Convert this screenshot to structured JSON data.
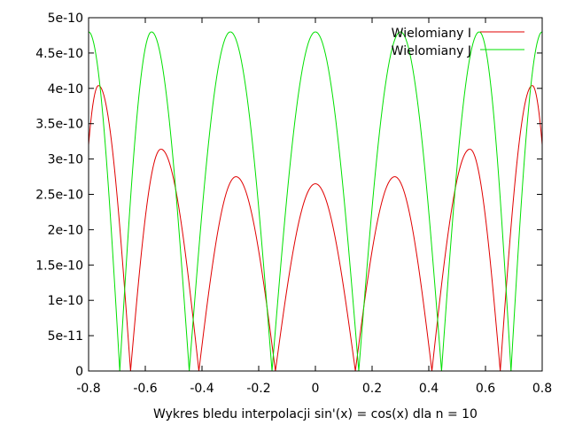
{
  "chart_data": {
    "type": "line",
    "title": "",
    "xlabel": "Wykres bledu interpolacji sin'(x) = cos(x) dla n = 10",
    "ylabel": "",
    "xlim": [
      -0.8,
      0.8
    ],
    "ylim": [
      0,
      5e-10
    ],
    "grid": false,
    "legend_position": "top-right",
    "x_ticks": [
      {
        "value": -0.8,
        "label": "-0.8"
      },
      {
        "value": -0.6,
        "label": "-0.6"
      },
      {
        "value": -0.4,
        "label": "-0.4"
      },
      {
        "value": -0.2,
        "label": "-0.2"
      },
      {
        "value": 0,
        "label": "0"
      },
      {
        "value": 0.2,
        "label": "0.2"
      },
      {
        "value": 0.4,
        "label": "0.4"
      },
      {
        "value": 0.6,
        "label": "0.6"
      },
      {
        "value": 0.8,
        "label": "0.8"
      }
    ],
    "y_ticks": [
      {
        "value": 0,
        "label": "0"
      },
      {
        "value": 5e-11,
        "label": "5e-11"
      },
      {
        "value": 1e-10,
        "label": "1e-10"
      },
      {
        "value": 1.5e-10,
        "label": "1.5e-10"
      },
      {
        "value": 2e-10,
        "label": "2e-10"
      },
      {
        "value": 2.5e-10,
        "label": "2.5e-10"
      },
      {
        "value": 3e-10,
        "label": "3e-10"
      },
      {
        "value": 3.5e-10,
        "label": "3.5e-10"
      },
      {
        "value": 4e-10,
        "label": "4e-10"
      },
      {
        "value": 4.5e-10,
        "label": "4.5e-10"
      },
      {
        "value": 5e-10,
        "label": "5e-10"
      }
    ],
    "series": [
      {
        "name": "Wielomiany I",
        "color": "#e00000",
        "roots": [
          -0.652,
          -0.411,
          -0.141,
          0.141,
          0.411,
          0.652
        ],
        "peaks": [
          {
            "x": -0.765,
            "y": 4.04e-10
          },
          {
            "x": -0.545,
            "y": 3.14e-10
          },
          {
            "x": -0.28,
            "y": 2.75e-10
          },
          {
            "x": 0,
            "y": 2.65e-10
          },
          {
            "x": 0.28,
            "y": 2.75e-10
          },
          {
            "x": 0.545,
            "y": 3.14e-10
          },
          {
            "x": 0.765,
            "y": 4.04e-10
          }
        ],
        "edge_values": [
          {
            "x": -0.8,
            "y": 3.2e-10
          },
          {
            "x": 0.8,
            "y": 3.2e-10
          }
        ]
      },
      {
        "name": "Wielomiany J",
        "color": "#00e000",
        "roots": [
          -0.69,
          -0.445,
          -0.153,
          0.153,
          0.445,
          0.69
        ],
        "peaks": [
          {
            "x": -0.8,
            "y": 4.8e-10
          },
          {
            "x": -0.578,
            "y": 4.8e-10
          },
          {
            "x": -0.3,
            "y": 4.8e-10
          },
          {
            "x": 0,
            "y": 4.8e-10
          },
          {
            "x": 0.3,
            "y": 4.8e-10
          },
          {
            "x": 0.578,
            "y": 4.8e-10
          },
          {
            "x": 0.8,
            "y": 4.8e-10
          }
        ],
        "edge_values": []
      }
    ]
  }
}
